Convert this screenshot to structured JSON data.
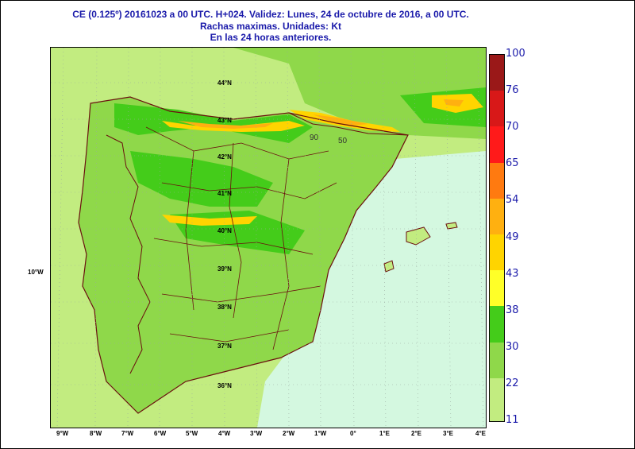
{
  "header": {
    "line1": "CE (0.125º) 20161023 a 00 UTC.  H+024. Validez: Lunes, 24 de octubre de 2016,  a  00 UTC.",
    "line2": "Rachas maximas. Unidades: Kt",
    "line3": "En las 24 horas anteriores."
  },
  "map": {
    "lat_labels": [
      "44°N",
      "43°N",
      "42°N",
      "41°N",
      "40°N",
      "39°N",
      "38°N",
      "37°N",
      "36°N"
    ],
    "lon_labels": [
      "9°W",
      "8°W",
      "7°W",
      "6°W",
      "5°W",
      "4°W",
      "3°W",
      "2°W",
      "1°W",
      "0°",
      "1°E",
      "2°E",
      "3°E",
      "4°E"
    ],
    "side_label": "10°W",
    "gust_labels": [
      "90",
      "50"
    ]
  },
  "legend": {
    "labels": [
      "100",
      "76",
      "70",
      "65",
      "54",
      "49",
      "43",
      "38",
      "30",
      "22",
      "11"
    ],
    "colors": [
      "#9a1818",
      "#d81818",
      "#ff1a1a",
      "#ff7a10",
      "#ffb010",
      "#ffd400",
      "#ffff28",
      "#44cc1a",
      "#8fd84a",
      "#c2ec80",
      "#d4f8e0"
    ]
  },
  "colors": {
    "title": "#1a1aaa",
    "border_lines": "#6b0f0f",
    "grid": "#9aaaa0"
  }
}
